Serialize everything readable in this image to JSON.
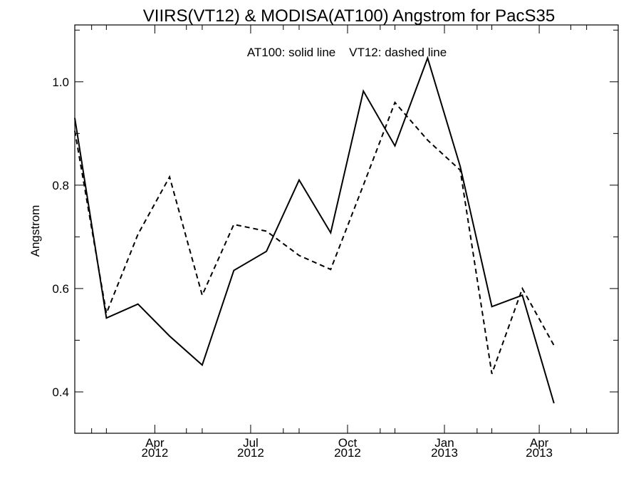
{
  "chart_data": {
    "type": "line",
    "title": "VIIRS(VT12) & MODISA(AT100)  Angstrom for PacS35",
    "annotation": "AT100: solid line    VT12: dashed line",
    "ylabel": "Angstrom",
    "xlabel": "",
    "ylim": [
      0.32,
      1.11
    ],
    "xlim": [
      "2012-01-16",
      "2013-06-15"
    ],
    "y_ticks": [
      0.4,
      0.6,
      0.8,
      1.0
    ],
    "y_tick_labels": [
      "0.4",
      "0.6",
      "0.8",
      "1.0"
    ],
    "x_ticks": [
      {
        "date": "2012-04-01",
        "label_month": "Apr",
        "label_year": "2012"
      },
      {
        "date": "2012-07-01",
        "label_month": "Jul",
        "label_year": "2012"
      },
      {
        "date": "2012-10-01",
        "label_month": "Oct",
        "label_year": "2012"
      },
      {
        "date": "2013-01-01",
        "label_month": "Jan",
        "label_year": "2013"
      },
      {
        "date": "2013-04-01",
        "label_month": "Apr",
        "label_year": "2013"
      }
    ],
    "series": [
      {
        "name": "AT100",
        "style": "solid",
        "color": "#000000",
        "points": [
          {
            "x": "2012-01-16",
            "y": 0.93
          },
          {
            "x": "2012-02-15",
            "y": 0.543
          },
          {
            "x": "2012-03-16",
            "y": 0.57
          },
          {
            "x": "2012-04-15",
            "y": 0.508
          },
          {
            "x": "2012-05-16",
            "y": 0.452
          },
          {
            "x": "2012-06-15",
            "y": 0.635
          },
          {
            "x": "2012-07-16",
            "y": 0.672
          },
          {
            "x": "2012-08-16",
            "y": 0.81
          },
          {
            "x": "2012-09-15",
            "y": 0.708
          },
          {
            "x": "2012-10-16",
            "y": 0.982
          },
          {
            "x": "2012-11-15",
            "y": 0.876
          },
          {
            "x": "2012-12-16",
            "y": 1.046
          },
          {
            "x": "2013-01-16",
            "y": 0.836
          },
          {
            "x": "2013-02-15",
            "y": 0.565
          },
          {
            "x": "2013-03-16",
            "y": 0.587
          },
          {
            "x": "2013-04-15",
            "y": 0.378
          }
        ]
      },
      {
        "name": "VT12",
        "style": "dashed",
        "color": "#000000",
        "points": [
          {
            "x": "2012-01-16",
            "y": 0.905
          },
          {
            "x": "2012-02-15",
            "y": 0.552
          },
          {
            "x": "2012-03-16",
            "y": 0.705
          },
          {
            "x": "2012-04-15",
            "y": 0.816
          },
          {
            "x": "2012-05-16",
            "y": 0.587
          },
          {
            "x": "2012-06-15",
            "y": 0.724
          },
          {
            "x": "2012-07-16",
            "y": 0.711
          },
          {
            "x": "2012-08-16",
            "y": 0.664
          },
          {
            "x": "2012-09-15",
            "y": 0.637
          },
          {
            "x": "2012-10-16",
            "y": 0.8
          },
          {
            "x": "2012-11-15",
            "y": 0.96
          },
          {
            "x": "2012-12-16",
            "y": 0.887
          },
          {
            "x": "2013-01-16",
            "y": 0.829
          },
          {
            "x": "2013-02-15",
            "y": 0.435
          },
          {
            "x": "2013-03-16",
            "y": 0.6
          },
          {
            "x": "2013-04-15",
            "y": 0.49
          }
        ]
      }
    ],
    "grid": false,
    "axes_box": true
  }
}
